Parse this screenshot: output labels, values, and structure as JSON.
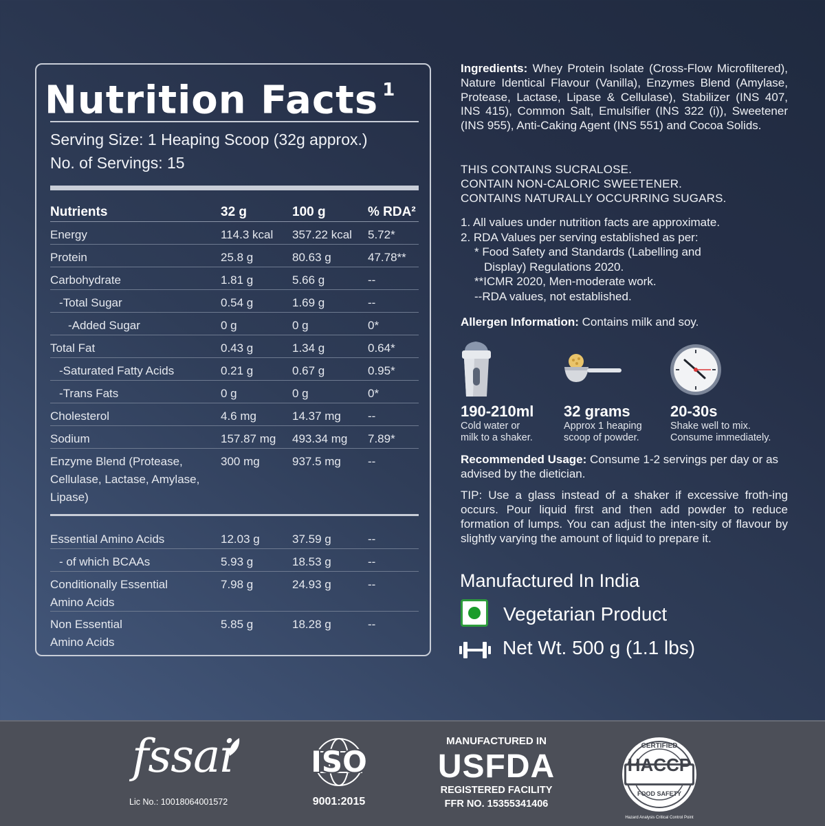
{
  "nutrition": {
    "title": "Nutrition Facts",
    "title_sup": "1",
    "serving_size": "Serving Size: 1 Heaping Scoop (32g approx.)",
    "servings": "No. of Servings: 15",
    "headers": [
      "Nutrients",
      "32 g",
      "100 g",
      "% RDA²"
    ],
    "rows": [
      {
        "name": "Energy",
        "per_serving": "114.3 kcal",
        "per_100g": "357.22 kcal",
        "rda": "5.72*"
      },
      {
        "name": "Protein",
        "per_serving": "25.8 g",
        "per_100g": "80.63 g",
        "rda": "47.78**"
      },
      {
        "name": "Carbohydrate",
        "per_serving": "1.81 g",
        "per_100g": "5.66 g",
        "rda": "--"
      },
      {
        "name": "-Total Sugar",
        "per_serving": "0.54 g",
        "per_100g": "1.69 g",
        "rda": "--"
      },
      {
        "name": "-Added Sugar",
        "per_serving": "0 g",
        "per_100g": "0 g",
        "rda": "0*"
      },
      {
        "name": "Total Fat",
        "per_serving": "0.43 g",
        "per_100g": "1.34 g",
        "rda": "0.64*"
      },
      {
        "name": "-Saturated Fatty Acids",
        "per_serving": "0.21 g",
        "per_100g": "0.67 g",
        "rda": "0.95*"
      },
      {
        "name": "-Trans Fats",
        "per_serving": "0 g",
        "per_100g": "0 g",
        "rda": "0*"
      },
      {
        "name": "Cholesterol",
        "per_serving": "4.6 mg",
        "per_100g": "14.37 mg",
        "rda": "--"
      },
      {
        "name": "Sodium",
        "per_serving": "157.87 mg",
        "per_100g": "493.34 mg",
        "rda": "7.89*"
      },
      {
        "name": "Enzyme Blend (Protease, Cellulase, Lactase, Amylase, Lipase)",
        "per_serving": "300 mg",
        "per_100g": "937.5 mg",
        "rda": "--"
      }
    ],
    "amino_rows": [
      {
        "name": "Essential Amino Acids",
        "per_serving": "12.03 g",
        "per_100g": "37.59 g",
        "rda": "--"
      },
      {
        "name": "- of which BCAAs",
        "per_serving": "5.93 g",
        "per_100g": "18.53 g",
        "rda": "--"
      },
      {
        "name": "Conditionally Essential Amino Acids",
        "per_serving": "7.98 g",
        "per_100g": "24.93 g",
        "rda": "--"
      },
      {
        "name": "Non Essential Amino Acids",
        "per_serving": "5.85 g",
        "per_100g": "18.28 g",
        "rda": "--"
      }
    ]
  },
  "ingredients": {
    "label": "Ingredients:",
    "text": "Whey Protein Isolate (Cross-Flow Microfiltered), Nature Identical Flavour (Vanilla), Enzymes Blend (Amylase, Protease, Lactase, Lipase & Cellulase), Stabilizer (INS 407, INS 415), Common Salt, Emulsifier (INS 322 (i)), Sweetener (INS 955), Anti-Caking Agent (INS 551) and Cocoa Solids."
  },
  "warnings": [
    "THIS CONTAINS SUCRALOSE.",
    "CONTAIN NON-CALORIC SWEETENER.",
    "CONTAINS NATURALLY OCCURRING SUGARS."
  ],
  "notes": {
    "n1": "1.  All values under nutrition facts  are approximate.",
    "n2": "2.  RDA Values per serving established as per:",
    "n2a": "* Food Safety and Standards (Labelling and",
    "n2a2": "Display) Regulations 2020.",
    "n2b": "**ICMR 2020, Men-moderate work.",
    "n2c": "--RDA values, not established."
  },
  "allergen": {
    "label": "Allergen Information:",
    "text": " Contains milk and soy."
  },
  "steps": [
    {
      "icon": "shaker-icon",
      "title": "190-210ml",
      "line1": "Cold water or",
      "line2": "milk to a shaker."
    },
    {
      "icon": "scoop-icon",
      "title": "32 grams",
      "line1": "Approx 1 heaping",
      "line2": "scoop of powder."
    },
    {
      "icon": "clock-icon",
      "title": "20-30s",
      "line1": "Shake well to mix.",
      "line2": "Consume immediately."
    }
  ],
  "usage": {
    "label": "Recommended Usage:",
    "text": " Consume 1-2 servings per day or as advised by the dietician."
  },
  "tip": "TIP: Use a glass instead of a shaker if excessive froth-ing occurs. Pour liquid first and then add powder to reduce formation of lumps. You can adjust the inten-sity of flavour by slightly varying the amount of liquid to prepare it.",
  "manufactured": "Manufactured In India",
  "vegetarian": "Vegetarian Product",
  "net_wt": "Net Wt. 500 g (1.1 lbs)",
  "footer": {
    "fssai": "fssai",
    "license": "Lic No.: 10018064001572",
    "iso": "ISO",
    "iso_std": "9001:2015",
    "usfda_top": "MANUFACTURED IN",
    "usfda": "USFDA",
    "usfda_reg": "REGISTERED FACILITY",
    "usfda_ffr": "FFR NO. 15355341406",
    "haccp": "HACCP",
    "haccp_top": "CERTIFIED",
    "haccp_bottom": "FOOD SAFETY",
    "haccp_tag": "Hazard Analysis Critical Control Point"
  },
  "colors": {
    "background": "#2f3d58",
    "footer": "#4c4f58",
    "veg_green": "#1a9c2a"
  }
}
